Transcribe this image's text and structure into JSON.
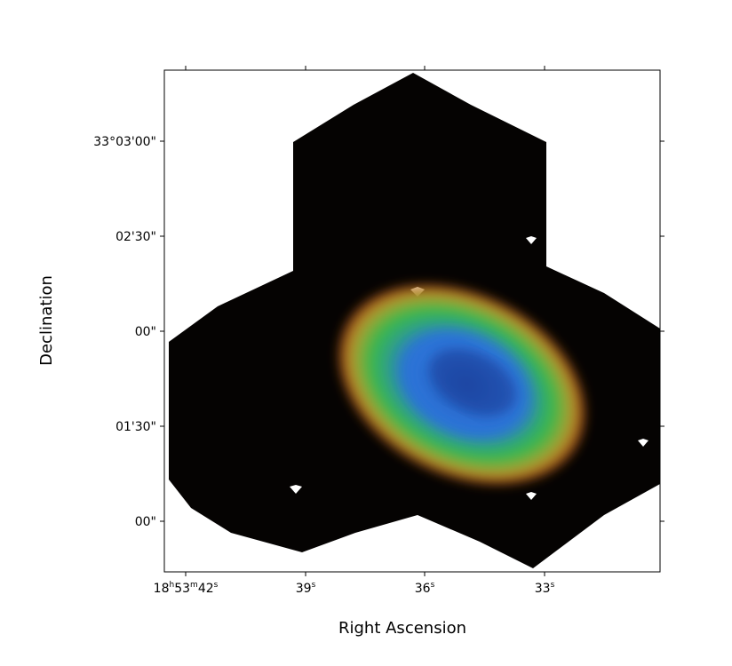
{
  "figure": {
    "xlabel": "Right Ascension",
    "ylabel": "Declination",
    "xticks": [
      {
        "main": "18",
        "sup1": "h",
        "mid": "53",
        "sup2": "m",
        "sec": "42",
        "sup3": "s"
      },
      {
        "main": "39",
        "sup": "s"
      },
      {
        "main": "36",
        "sup": "s"
      },
      {
        "main": "33",
        "sup": "s"
      }
    ],
    "yticks": [
      "33°03'00\"",
      "02'30\"",
      "00\"",
      "01'30\"",
      "00\""
    ]
  },
  "image": {
    "subject": "ring nebula false-color image",
    "colors": {
      "background": "#000000",
      "outer_ring": "#d2691e",
      "mid_ring": "#2fb34a",
      "inner_core": "#1e64d2"
    }
  }
}
